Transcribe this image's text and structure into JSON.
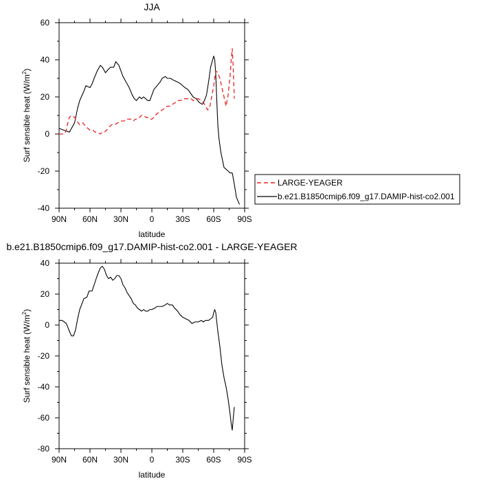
{
  "colors": {
    "black": "#000000",
    "red": "#e8221f",
    "axis": "#000000"
  },
  "chart_data": [
    {
      "type": "line",
      "title": "JJA",
      "xlabel": "latitude",
      "ylabel": "Surf sensible heat (W/m",
      "ylabel_sup": "2",
      "ylabel_end": ")",
      "xlim": [
        90,
        -90
      ],
      "ylim": [
        -40,
        60
      ],
      "x_ticks": [
        90,
        60,
        30,
        0,
        -30,
        -60,
        -90
      ],
      "x_tick_labels": [
        "90N",
        "60N",
        "30N",
        "0",
        "30S",
        "60S",
        "90S"
      ],
      "y_ticks": [
        -40,
        -20,
        0,
        20,
        40,
        60
      ],
      "y_tick_labels": [
        "-40",
        "-20",
        "0",
        "20",
        "40",
        "60"
      ],
      "legend": [
        {
          "label": "LARGE-YEAGER",
          "color": "#e8221f",
          "dash": true
        },
        {
          "label": "b.e21.B1850cmip6.f09_g17.DAMIP-hist-co2.001",
          "color": "#000000",
          "dash": false
        }
      ],
      "series": [
        {
          "name": "b.e21.B1850cmip6.f09_g17.DAMIP-hist-co2.001",
          "color": "#000000",
          "dash": false,
          "x": [
            90,
            85,
            80,
            78,
            75,
            72,
            70,
            66,
            64,
            60,
            58,
            56,
            53,
            50,
            48,
            45,
            42,
            40,
            37,
            35,
            32,
            30,
            28,
            25,
            22,
            19,
            17,
            15,
            12,
            10,
            8,
            6,
            4,
            2,
            0,
            -2,
            -5,
            -8,
            -10,
            -13,
            -15,
            -18,
            -21,
            -25,
            -28,
            -32,
            -35,
            -40,
            -43,
            -46,
            -49,
            -51,
            -53,
            -55,
            -57,
            -59,
            -60,
            -61,
            -62,
            -63,
            -64,
            -65,
            -67,
            -70,
            -72,
            -74,
            -76,
            -78,
            -80,
            -82,
            -85
          ],
          "y": [
            3,
            2,
            1,
            3,
            6,
            14,
            18,
            23,
            26,
            25,
            27,
            30,
            34,
            37,
            36,
            33,
            35,
            36,
            36,
            39,
            37,
            34,
            31,
            28,
            25,
            21,
            19,
            18,
            20,
            19,
            20,
            19,
            18,
            18,
            21,
            24,
            26,
            28,
            30,
            31,
            30,
            30,
            29,
            28,
            27,
            25,
            24,
            20,
            19,
            17,
            16,
            18,
            21,
            28,
            36,
            40,
            42,
            40,
            32,
            18,
            5,
            -2,
            -10,
            -18,
            -19,
            -20,
            -21,
            -21,
            -27,
            -34,
            -38
          ]
        },
        {
          "name": "LARGE-YEAGER",
          "color": "#e8221f",
          "dash": true,
          "x": [
            90,
            87,
            85,
            83,
            82,
            80,
            78,
            75,
            73,
            70,
            67,
            64,
            62,
            60,
            57,
            55,
            53,
            50,
            48,
            46,
            44,
            41,
            39,
            36,
            33,
            30,
            27,
            25,
            22,
            20,
            18,
            16,
            14,
            12,
            10,
            8,
            6,
            4,
            2,
            0,
            -2,
            -5,
            -8,
            -10,
            -13,
            -15,
            -18,
            -20,
            -23,
            -25,
            -28,
            -30,
            -33,
            -35,
            -38,
            -40,
            -43,
            -45,
            -48,
            -50,
            -52,
            -54,
            -56,
            -58,
            -60,
            -62,
            -64,
            -66,
            -68,
            -70,
            -72,
            -74,
            -76,
            -77,
            -78,
            -79,
            -80
          ],
          "y": [
            0,
            0,
            0,
            2,
            5,
            9,
            10,
            9,
            7,
            5,
            6,
            4,
            3,
            2,
            2,
            1,
            1,
            0,
            1,
            1,
            2,
            4,
            5,
            5,
            6,
            7,
            7,
            8,
            8,
            8,
            7,
            8,
            8,
            9,
            10,
            10,
            9,
            9,
            8,
            8,
            9,
            11,
            12,
            13,
            14,
            15,
            15,
            16,
            17,
            18,
            18,
            19,
            19,
            19,
            19,
            18,
            19,
            19,
            18,
            17,
            15,
            13,
            14,
            20,
            26,
            34,
            33,
            30,
            25,
            20,
            15,
            21,
            32,
            40,
            46,
            35,
            19
          ]
        }
      ]
    },
    {
      "type": "line",
      "title": "b.e21.B1850cmip6.f09_g17.DAMIP-hist-co2.001 - LARGE-YEAGER",
      "xlabel": "latitude",
      "ylabel": "Surf sensible heat (W/m",
      "ylabel_sup": "2",
      "ylabel_end": ")",
      "xlim": [
        90,
        -90
      ],
      "ylim": [
        -80,
        40
      ],
      "x_ticks": [
        90,
        60,
        30,
        0,
        -30,
        -60,
        -90
      ],
      "x_tick_labels": [
        "90N",
        "60N",
        "30N",
        "0",
        "30S",
        "60S",
        "90S"
      ],
      "y_ticks": [
        -80,
        -60,
        -40,
        -20,
        0,
        20,
        40
      ],
      "y_tick_labels": [
        "-80",
        "-60",
        "-40",
        "-20",
        "0",
        "20",
        "40"
      ],
      "series": [
        {
          "color": "#000000",
          "dash": false,
          "x": [
            90,
            87,
            85,
            83,
            80,
            78,
            76,
            74,
            72,
            70,
            66,
            63,
            61,
            58,
            56,
            53,
            50,
            48,
            46,
            44,
            42,
            40,
            38,
            36,
            34,
            32,
            30,
            28,
            26,
            24,
            22,
            20,
            18,
            16,
            14,
            12,
            10,
            8,
            6,
            4,
            2,
            0,
            -3,
            -5,
            -8,
            -10,
            -13,
            -15,
            -17,
            -20,
            -22,
            -25,
            -27,
            -30,
            -33,
            -36,
            -39,
            -42,
            -45,
            -48,
            -50,
            -52,
            -55,
            -57,
            -59,
            -60,
            -61,
            -62,
            -64,
            -66,
            -68,
            -70,
            -72,
            -74,
            -76,
            -77,
            -78,
            -79,
            -80
          ],
          "y": [
            3,
            3,
            2,
            1,
            -4,
            -7,
            -7,
            -3,
            4,
            10,
            17,
            18,
            22,
            22,
            26,
            32,
            37,
            38,
            36,
            32,
            30,
            31,
            29,
            30,
            32,
            32,
            30,
            26,
            24,
            21,
            19,
            17,
            14,
            13,
            11,
            10,
            9,
            10,
            9,
            9,
            10,
            10,
            11,
            12,
            12,
            12,
            13,
            14,
            13,
            13,
            11,
            9,
            7,
            5,
            4,
            3,
            1,
            2,
            2,
            3,
            2,
            3,
            3,
            4,
            5,
            8,
            10,
            8,
            -4,
            -14,
            -26,
            -34,
            -40,
            -48,
            -58,
            -64,
            -68,
            -60,
            -53
          ]
        }
      ]
    }
  ]
}
